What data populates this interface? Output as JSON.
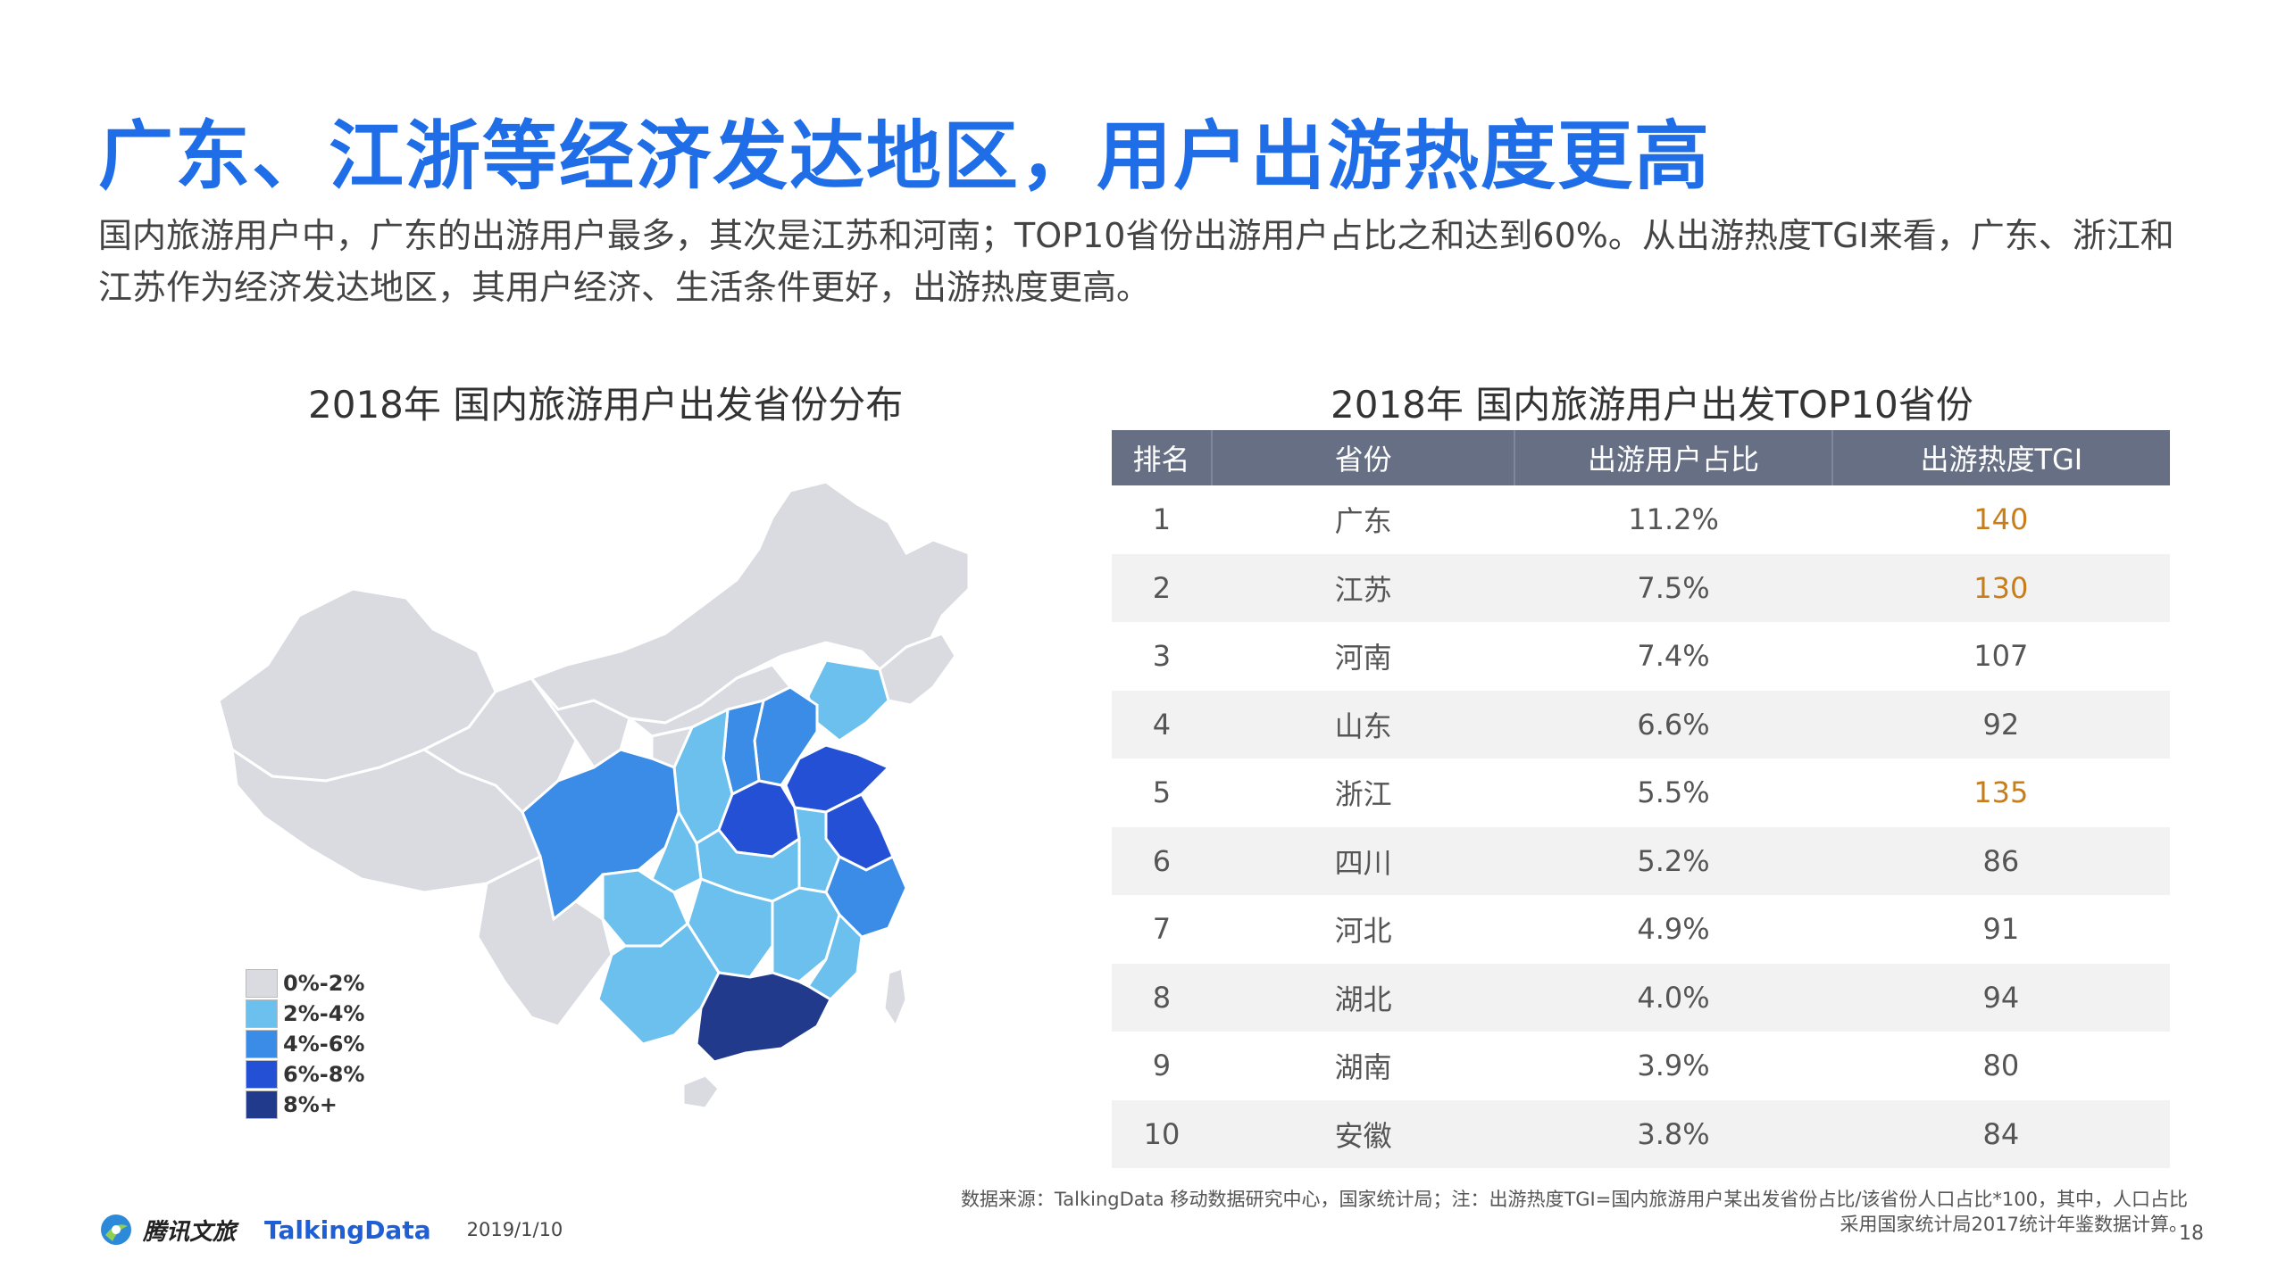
{
  "header": {
    "title": "广东、江浙等经济发达地区，用户出游热度更高",
    "description": "国内旅游用户中，广东的出游用户最多，其次是江苏和河南；TOP10省份出游用户占比之和达到60%。从出游热度TGI来看，广东、浙江和江苏作为经济发达地区，其用户经济、生活条件更好，出游热度更高。"
  },
  "map": {
    "title": "2018年 国内旅游用户出发省份分布",
    "legend": [
      {
        "label": "0%-2%",
        "color": "#d9dbe0"
      },
      {
        "label": "2%-4%",
        "color": "#6cc0ee"
      },
      {
        "label": "4%-6%",
        "color": "#3b8ce6"
      },
      {
        "label": "6%-8%",
        "color": "#2450d6"
      },
      {
        "label": "8%+",
        "color": "#213a8c"
      }
    ]
  },
  "table": {
    "title": "2018年 国内旅游用户出发TOP10省份",
    "headers": [
      "排名",
      "省份",
      "出游用户占比",
      "出游热度TGI"
    ],
    "rows": [
      {
        "rank": "1",
        "province": "广东",
        "share": "11.2%",
        "tgi": "140",
        "highlight": true
      },
      {
        "rank": "2",
        "province": "江苏",
        "share": "7.5%",
        "tgi": "130",
        "highlight": true
      },
      {
        "rank": "3",
        "province": "河南",
        "share": "7.4%",
        "tgi": "107",
        "highlight": false
      },
      {
        "rank": "4",
        "province": "山东",
        "share": "6.6%",
        "tgi": "92",
        "highlight": false
      },
      {
        "rank": "5",
        "province": "浙江",
        "share": "5.5%",
        "tgi": "135",
        "highlight": true
      },
      {
        "rank": "6",
        "province": "四川",
        "share": "5.2%",
        "tgi": "86",
        "highlight": false
      },
      {
        "rank": "7",
        "province": "河北",
        "share": "4.9%",
        "tgi": "91",
        "highlight": false
      },
      {
        "rank": "8",
        "province": "湖北",
        "share": "4.0%",
        "tgi": "94",
        "highlight": false
      },
      {
        "rank": "9",
        "province": "湖南",
        "share": "3.9%",
        "tgi": "80",
        "highlight": false
      },
      {
        "rank": "10",
        "province": "安徽",
        "share": "3.8%",
        "tgi": "84",
        "highlight": false
      }
    ],
    "highlight_color": "#c77d1a",
    "header_color": "#666f83"
  },
  "footer": {
    "source_line1": "数据来源：TalkingData 移动数据研究中心，国家统计局；注：出游热度TGI=国内旅游用户某出发省份占比/该省份人口占比*100，其中，人口占比",
    "source_line2": "采用国家统计局2017统计年鉴数据计算。",
    "page_number": "18",
    "brand1": "腾讯文旅",
    "brand2": "TalkingData",
    "date": "2019/1/10"
  }
}
